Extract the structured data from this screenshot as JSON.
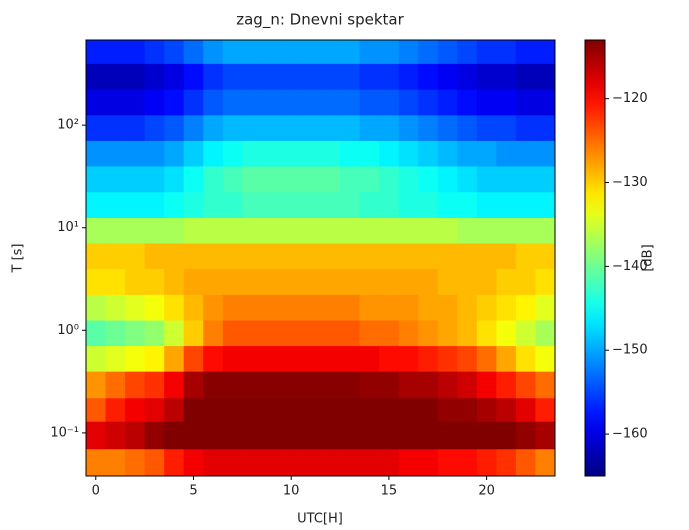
{
  "chart_data": {
    "type": "heatmap",
    "title": "zag_n: Dnevni spektar",
    "x_label": "UTC[H]",
    "y_label": "T [s]",
    "colorbar_label": "[dB]",
    "colormap": "jet",
    "x": [
      0,
      1,
      2,
      3,
      4,
      5,
      6,
      7,
      8,
      9,
      10,
      11,
      12,
      13,
      14,
      15,
      16,
      17,
      18,
      19,
      20,
      21,
      22,
      23
    ],
    "xlim": [
      -0.5,
      23.5
    ],
    "xticks": [
      0,
      5,
      10,
      15,
      20
    ],
    "y_edges": [
      0.038,
      0.07,
      0.13,
      0.22,
      0.4,
      0.71,
      1.26,
      2.24,
      4,
      7.1,
      12.6,
      22.4,
      40,
      71,
      126,
      224,
      400,
      676
    ],
    "ylim": [
      0.038,
      676
    ],
    "y_scale": "log",
    "yticks": [
      {
        "value": 0.1,
        "label": "10⁻¹"
      },
      {
        "value": 1,
        "label": "10⁰"
      },
      {
        "value": 10,
        "label": "10¹"
      },
      {
        "value": 100,
        "label": "10²"
      }
    ],
    "clim": [
      -165,
      -113
    ],
    "cticks": [
      {
        "value": -160,
        "label": "−160"
      },
      {
        "value": -150,
        "label": "−150"
      },
      {
        "value": -140,
        "label": "−140"
      },
      {
        "value": -130,
        "label": "−130"
      },
      {
        "value": -120,
        "label": "−120"
      }
    ],
    "z": [
      [
        -126,
        -126,
        -125,
        -124,
        -121,
        -119,
        -118,
        -118,
        -118,
        -118,
        -118,
        -118,
        -118,
        -118,
        -118,
        -118,
        -119,
        -119,
        -120,
        -120,
        -121,
        -122,
        -124,
        -126
      ],
      [
        -118,
        -117,
        -116,
        -114,
        -113,
        -113,
        -113,
        -113,
        -113,
        -113,
        -113,
        -113,
        -113,
        -113,
        -113,
        -113,
        -113,
        -113,
        -113,
        -113,
        -113,
        -113,
        -114,
        -115
      ],
      [
        -124,
        -121,
        -119,
        -118,
        -116,
        -113,
        -113,
        -113,
        -113,
        -113,
        -113,
        -113,
        -113,
        -113,
        -113,
        -113,
        -113,
        -113,
        -114,
        -114,
        -115,
        -116,
        -118,
        -121
      ],
      [
        -127,
        -125,
        -123,
        -122,
        -119,
        -115,
        -113.5,
        -113.5,
        -113.5,
        -113.5,
        -113.5,
        -113.5,
        -113.5,
        -113.5,
        -114,
        -114,
        -115,
        -115,
        -116,
        -117,
        -119,
        -121,
        -123,
        -125
      ],
      [
        -135,
        -134,
        -133,
        -132,
        -128,
        -123,
        -120,
        -119,
        -119,
        -119,
        -119,
        -119,
        -119,
        -119,
        -119,
        -120,
        -120,
        -121,
        -122,
        -123,
        -125,
        -128,
        -131,
        -133
      ],
      [
        -141,
        -140,
        -139,
        -138,
        -135,
        -130,
        -126,
        -124,
        -124,
        -124,
        -124,
        -124,
        -124,
        -124,
        -125,
        -125,
        -126,
        -127,
        -128,
        -129,
        -131,
        -133,
        -135,
        -137
      ],
      [
        -136,
        -135,
        -134,
        -133,
        -131,
        -129,
        -127,
        -126,
        -126,
        -126,
        -126,
        -126,
        -126,
        -126,
        -127,
        -127,
        -127,
        -128,
        -128,
        -129,
        -130,
        -131,
        -132,
        -134
      ],
      [
        -131,
        -131,
        -130,
        -130,
        -129,
        -128,
        -128,
        -128,
        -128,
        -128,
        -128,
        -128,
        -128,
        -128,
        -128,
        -128,
        -128,
        -128,
        -129,
        -129,
        -129,
        -130,
        -130,
        -131
      ],
      [
        -130,
        -130,
        -130,
        -129,
        -129,
        -129,
        -129,
        -129,
        -129,
        -129,
        -129,
        -129,
        -129,
        -129,
        -129,
        -129,
        -129,
        -129,
        -129,
        -129,
        -129,
        -129,
        -130,
        -130
      ],
      [
        -137,
        -137,
        -137,
        -137,
        -137,
        -136,
        -136,
        -136,
        -136,
        -136,
        -136,
        -136,
        -136,
        -136,
        -136,
        -136,
        -136,
        -136,
        -136,
        -137,
        -137,
        -137,
        -137,
        -137
      ],
      [
        -146,
        -146,
        -146,
        -146,
        -145,
        -144,
        -143,
        -143,
        -142,
        -142,
        -142,
        -142,
        -142,
        -142,
        -143,
        -143,
        -144,
        -144,
        -145,
        -145,
        -146,
        -146,
        -146,
        -146
      ],
      [
        -148,
        -148,
        -148,
        -148,
        -147,
        -145,
        -143,
        -142,
        -141,
        -141,
        -141,
        -141,
        -141,
        -142,
        -142,
        -143,
        -144,
        -145,
        -146,
        -147,
        -148,
        -148,
        -148,
        -148
      ],
      [
        -151,
        -151,
        -151,
        -151,
        -150,
        -148,
        -146,
        -145,
        -144,
        -144,
        -144,
        -144,
        -144,
        -145,
        -145,
        -146,
        -147,
        -148,
        -149,
        -150,
        -150,
        -151,
        -151,
        -151
      ],
      [
        -156,
        -156,
        -156,
        -155,
        -154,
        -152,
        -150,
        -149,
        -149,
        -149,
        -149,
        -149,
        -149,
        -149,
        -150,
        -150,
        -151,
        -152,
        -153,
        -154,
        -155,
        -155,
        -156,
        -156
      ],
      [
        -160,
        -160,
        -160,
        -159,
        -158,
        -156,
        -154,
        -153,
        -153,
        -153,
        -153,
        -153,
        -153,
        -153,
        -154,
        -154,
        -155,
        -156,
        -157,
        -158,
        -159,
        -159,
        -160,
        -160
      ],
      [
        -162,
        -162,
        -162,
        -161,
        -160,
        -158,
        -156,
        -155,
        -155,
        -155,
        -155,
        -155,
        -155,
        -155,
        -156,
        -156,
        -157,
        -158,
        -159,
        -160,
        -161,
        -161,
        -162,
        -162
      ],
      [
        -157,
        -157,
        -157,
        -156,
        -155,
        -153,
        -151,
        -150,
        -150,
        -150,
        -150,
        -150,
        -150,
        -150,
        -151,
        -151,
        -152,
        -153,
        -154,
        -155,
        -156,
        -156,
        -157,
        -157
      ]
    ]
  }
}
